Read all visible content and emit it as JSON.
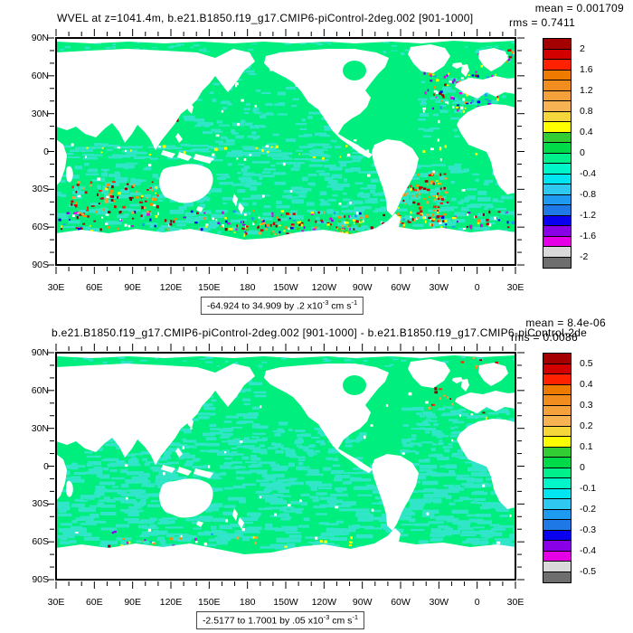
{
  "palette": [
    "#a50000",
    "#d30000",
    "#ff2100",
    "#ee7a00",
    "#f08d1e",
    "#f4a13c",
    "#f7b254",
    "#f5d73c",
    "#ffff00",
    "#32cd32",
    "#00d948",
    "#00f08c",
    "#00f5c8",
    "#00e6f0",
    "#2ec8f0",
    "#1e9bf0",
    "#1e78e6",
    "#0a00f0",
    "#8a00e6",
    "#e600e6",
    "#d9d9d9",
    "#6e6e6e"
  ],
  "map_colors": {
    "ocean_green": "#00ee7d",
    "ocean_aqua": "#31e6c8",
    "land": "#ffffff",
    "speckle_warm": [
      "#cc0000",
      "#8b0000",
      "#ff2100",
      "#ffff00",
      "#ff8c00",
      "#f4a13c"
    ],
    "speckle_mix": [
      "#cc0000",
      "#8b0000",
      "#ffff00",
      "#ff8c00",
      "#0000ee",
      "#8a00e6",
      "#e600e6",
      "#1e9bf0",
      "#ffffff"
    ]
  },
  "axes": {
    "lat_labels": [
      "90N",
      "60N",
      "30N",
      "0",
      "30S",
      "60S",
      "90S"
    ],
    "lon_labels": [
      "30E",
      "60E",
      "90E",
      "120E",
      "150E",
      "180",
      "150W",
      "120W",
      "90W",
      "60W",
      "30W",
      "0",
      "30E"
    ]
  },
  "plot1": {
    "mean": "mean = 0.001709",
    "rms": "rms = 0.7411",
    "title": "WVEL at z=1041.4m, b.e21.B1850.f19_g17.CMIP6-piControl-2deg.002 [901-1000]",
    "colorbar_labels": [
      "2",
      "1.6",
      "1.2",
      "0.8",
      "0.4",
      "0",
      "-0.4",
      "-0.8",
      "-1.2",
      "-1.6",
      "-2"
    ],
    "range": {
      "text": "-64.924 to 34.909 by .2 x10",
      "exp": "-3",
      "unit": " cm s",
      "unit_exp": "-1"
    }
  },
  "plot2": {
    "mean": "mean = 8.4e-06",
    "rms": "rms = 0.0086",
    "title": "b.e21.B1850.f19_g17.CMIP6-piControl-2deg.002 [901-1000] - b.e21.B1850.f19_g17.CMIP6-piControl-2de",
    "colorbar_labels": [
      "0.5",
      "0.4",
      "0.3",
      "0.2",
      "0.1",
      "0",
      "-0.1",
      "-0.2",
      "-0.3",
      "-0.4",
      "-0.5"
    ],
    "range": {
      "text": "-2.5177 to 1.7001 by .05 x10",
      "exp": "-3",
      "unit": " cm s",
      "unit_exp": "-1"
    }
  },
  "chart_data": [
    {
      "type": "heatmap",
      "title": "WVEL at z=1041.4m, b.e21.B1850.f19_g17.CMIP6-piControl-2deg.002 [901-1000]",
      "projection": "cylindrical equidistant world map, longitudes 30E to 30E",
      "x_tick_labels": [
        "30E",
        "60E",
        "90E",
        "120E",
        "150E",
        "180",
        "150W",
        "120W",
        "90W",
        "60W",
        "30W",
        "0",
        "30E"
      ],
      "y_tick_labels": [
        "90N",
        "60N",
        "30N",
        "0",
        "30S",
        "60S",
        "90S"
      ],
      "colorbar_ticks": [
        2,
        1.6,
        1.2,
        0.8,
        0.4,
        0,
        -0.4,
        -0.8,
        -1.2,
        -1.6,
        -2
      ],
      "contour_interval": 0.2,
      "units": "x10^-3 cm s^-1",
      "field_min": -64.924,
      "field_max": 34.909,
      "mean": 0.001709,
      "rms": 0.7411,
      "legend_position": "right"
    },
    {
      "type": "heatmap",
      "title": "b.e21.B1850.f19_g17.CMIP6-piControl-2deg.002 [901-1000] - b.e21.B1850.f19_g17.CMIP6-piControl-2de",
      "projection": "cylindrical equidistant world map, longitudes 30E to 30E",
      "x_tick_labels": [
        "30E",
        "60E",
        "90E",
        "120E",
        "150E",
        "180",
        "150W",
        "120W",
        "90W",
        "60W",
        "30W",
        "0",
        "30E"
      ],
      "y_tick_labels": [
        "90N",
        "60N",
        "30N",
        "0",
        "30S",
        "60S",
        "90S"
      ],
      "colorbar_ticks": [
        0.5,
        0.4,
        0.3,
        0.2,
        0.1,
        0,
        -0.1,
        -0.2,
        -0.3,
        -0.4,
        -0.5
      ],
      "contour_interval": 0.05,
      "units": "x10^-3 cm s^-1",
      "field_min": -2.5177,
      "field_max": 1.7001,
      "mean": 8.4e-06,
      "rms": 0.0086,
      "legend_position": "right"
    }
  ]
}
